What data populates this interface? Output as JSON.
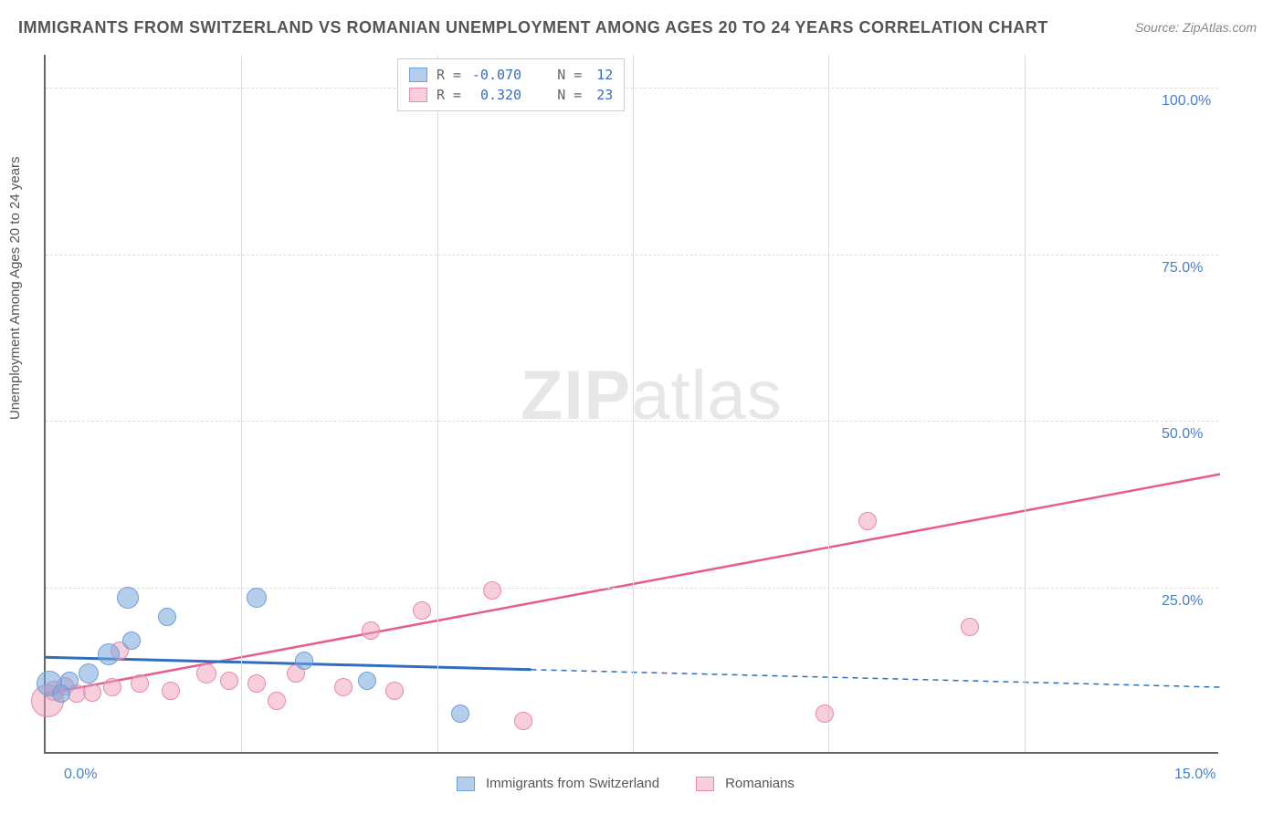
{
  "chart": {
    "type": "scatter-correlation",
    "title": "IMMIGRANTS FROM SWITZERLAND VS ROMANIAN UNEMPLOYMENT AMONG AGES 20 TO 24 YEARS CORRELATION CHART",
    "source_label": "Source: ZipAtlas.com",
    "ylabel": "Unemployment Among Ages 20 to 24 years",
    "watermark_bold": "ZIP",
    "watermark_light": "atlas",
    "background_color": "#ffffff",
    "grid_color": "#dddddd",
    "axis_color": "#666666",
    "title_color": "#555555",
    "title_fontsize": 18,
    "tick_label_color": "#4a7fc9",
    "tick_fontsize": 16,
    "xlim": [
      0.0,
      15.0
    ],
    "ylim": [
      0.0,
      105.0
    ],
    "xticks": [
      {
        "pos": 0.0,
        "label": "0.0%"
      },
      {
        "pos": 15.0,
        "label": "15.0%"
      }
    ],
    "xtick_minor_positions": [
      2.5,
      5.0,
      7.5,
      10.0,
      12.5
    ],
    "yticks": [
      {
        "pos": 25.0,
        "label": "25.0%"
      },
      {
        "pos": 50.0,
        "label": "50.0%"
      },
      {
        "pos": 75.0,
        "label": "75.0%"
      },
      {
        "pos": 100.0,
        "label": "100.0%"
      }
    ],
    "series": {
      "blue": {
        "name": "Immigrants from Switzerland",
        "fill_color": "rgba(120,165,220,0.55)",
        "stroke_color": "#6f9fd8",
        "line_color": "#2f6dc0",
        "R_label": "-0.070",
        "N_label": "12",
        "points": [
          {
            "x": 0.05,
            "y": 10.5,
            "r": 14
          },
          {
            "x": 0.2,
            "y": 9.0,
            "r": 10
          },
          {
            "x": 0.3,
            "y": 11.0,
            "r": 10
          },
          {
            "x": 0.55,
            "y": 12.0,
            "r": 11
          },
          {
            "x": 0.8,
            "y": 15.0,
            "r": 12
          },
          {
            "x": 1.05,
            "y": 23.5,
            "r": 12
          },
          {
            "x": 1.1,
            "y": 17.0,
            "r": 10
          },
          {
            "x": 1.55,
            "y": 20.5,
            "r": 10
          },
          {
            "x": 2.7,
            "y": 23.5,
            "r": 11
          },
          {
            "x": 3.3,
            "y": 14.0,
            "r": 10
          },
          {
            "x": 4.1,
            "y": 11.0,
            "r": 10
          },
          {
            "x": 5.3,
            "y": 6.0,
            "r": 10
          }
        ],
        "trend_line": {
          "x1": 0.0,
          "y1": 14.5,
          "x2": 15.0,
          "y2": 10.0,
          "solid_until_x": 6.2
        }
      },
      "pink": {
        "name": "Romanians",
        "fill_color": "rgba(240,160,185,0.50)",
        "stroke_color": "#e88aa8",
        "line_color": "#e75c8d",
        "R_label": "0.320",
        "N_label": "23",
        "points": [
          {
            "x": 0.02,
            "y": 8.0,
            "r": 18
          },
          {
            "x": 0.1,
            "y": 9.5,
            "r": 11
          },
          {
            "x": 0.25,
            "y": 10.2,
            "r": 10
          },
          {
            "x": 0.4,
            "y": 9.0,
            "r": 10
          },
          {
            "x": 0.6,
            "y": 9.2,
            "r": 10
          },
          {
            "x": 0.85,
            "y": 10.0,
            "r": 10
          },
          {
            "x": 0.95,
            "y": 15.5,
            "r": 10
          },
          {
            "x": 1.2,
            "y": 10.5,
            "r": 10
          },
          {
            "x": 1.6,
            "y": 9.5,
            "r": 10
          },
          {
            "x": 2.05,
            "y": 12.0,
            "r": 11
          },
          {
            "x": 2.35,
            "y": 11.0,
            "r": 10
          },
          {
            "x": 2.7,
            "y": 10.5,
            "r": 10
          },
          {
            "x": 2.95,
            "y": 8.0,
            "r": 10
          },
          {
            "x": 3.2,
            "y": 12.0,
            "r": 10
          },
          {
            "x": 3.8,
            "y": 10.0,
            "r": 10
          },
          {
            "x": 4.15,
            "y": 18.5,
            "r": 10
          },
          {
            "x": 4.45,
            "y": 9.5,
            "r": 10
          },
          {
            "x": 4.8,
            "y": 21.5,
            "r": 10
          },
          {
            "x": 5.7,
            "y": 24.5,
            "r": 10
          },
          {
            "x": 6.1,
            "y": 5.0,
            "r": 10
          },
          {
            "x": 9.95,
            "y": 6.0,
            "r": 10
          },
          {
            "x": 10.5,
            "y": 35.0,
            "r": 10
          },
          {
            "x": 11.8,
            "y": 19.0,
            "r": 10
          }
        ],
        "trend_line": {
          "x1": 0.0,
          "y1": 9.0,
          "x2": 15.0,
          "y2": 42.0
        }
      }
    },
    "legend_bottom": [
      {
        "swatch_fill": "rgba(120,165,220,0.55)",
        "swatch_stroke": "#6f9fd8",
        "label": "Immigrants from Switzerland"
      },
      {
        "swatch_fill": "rgba(240,160,185,0.50)",
        "swatch_stroke": "#e88aa8",
        "label": "Romanians"
      }
    ],
    "legend_top_labels": {
      "R_prefix": "R =",
      "N_prefix": "N ="
    }
  }
}
